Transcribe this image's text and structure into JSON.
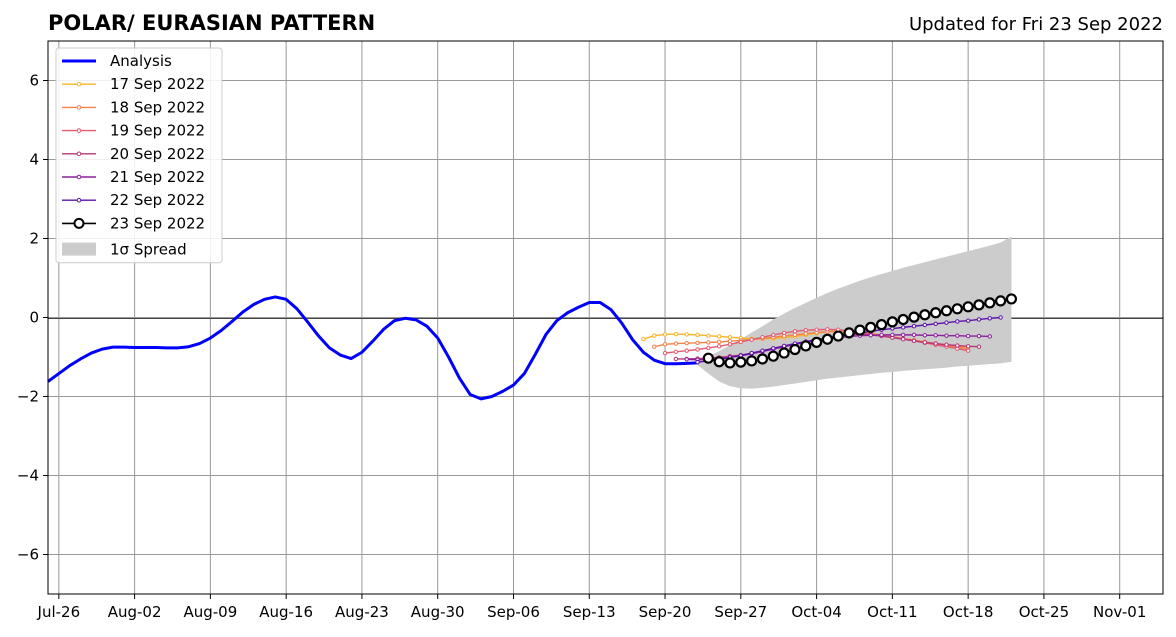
{
  "chart_data": {
    "type": "line",
    "title": "POLAR/ EURASIAN  PATTERN",
    "subtitle": "Updated for Fri 23 Sep 2022",
    "xlabel": "",
    "ylabel": "",
    "xlim": [
      "2022-07-25",
      "2022-11-05"
    ],
    "ylim": [
      -7,
      7
    ],
    "grid": true,
    "legend_position": "top-left",
    "x_ticks": [
      "2022-07-26",
      "2022-08-02",
      "2022-08-09",
      "2022-08-16",
      "2022-08-23",
      "2022-08-30",
      "2022-09-06",
      "2022-09-13",
      "2022-09-20",
      "2022-09-27",
      "2022-10-04",
      "2022-10-11",
      "2022-10-18",
      "2022-10-25",
      "2022-11-01"
    ],
    "x_tick_labels": [
      "Jul-26",
      "Aug-02",
      "Aug-09",
      "Aug-16",
      "Aug-23",
      "Aug-30",
      "Sep-06",
      "Sep-13",
      "Sep-20",
      "Sep-27",
      "Oct-04",
      "Oct-11",
      "Oct-18",
      "Oct-25",
      "Nov-01"
    ],
    "y_ticks": [
      -6,
      -4,
      -2,
      0,
      2,
      4,
      6
    ],
    "y_tick_labels": [
      "−6",
      "−4",
      "−2",
      "0",
      "2",
      "4",
      "6"
    ],
    "series": [
      {
        "name": "Analysis",
        "color": "#0000ff",
        "style": "thick-line",
        "x": [
          "2022-07-25",
          "2022-07-26",
          "2022-07-27",
          "2022-07-28",
          "2022-07-29",
          "2022-07-30",
          "2022-07-31",
          "2022-08-01",
          "2022-08-02",
          "2022-08-03",
          "2022-08-04",
          "2022-08-05",
          "2022-08-06",
          "2022-08-07",
          "2022-08-08",
          "2022-08-09",
          "2022-08-10",
          "2022-08-11",
          "2022-08-12",
          "2022-08-13",
          "2022-08-14",
          "2022-08-15",
          "2022-08-16",
          "2022-08-17",
          "2022-08-18",
          "2022-08-19",
          "2022-08-20",
          "2022-08-21",
          "2022-08-22",
          "2022-08-23",
          "2022-08-24",
          "2022-08-25",
          "2022-08-26",
          "2022-08-27",
          "2022-08-28",
          "2022-08-29",
          "2022-08-30",
          "2022-08-31",
          "2022-09-01",
          "2022-09-02",
          "2022-09-03",
          "2022-09-04",
          "2022-09-05",
          "2022-09-06",
          "2022-09-07",
          "2022-09-08",
          "2022-09-09",
          "2022-09-10",
          "2022-09-11",
          "2022-09-12",
          "2022-09-13",
          "2022-09-14",
          "2022-09-15",
          "2022-09-16",
          "2022-09-17",
          "2022-09-18",
          "2022-09-19",
          "2022-09-20",
          "2022-09-21",
          "2022-09-22",
          "2022-09-23"
        ],
        "y": [
          -1.62,
          -1.42,
          -1.22,
          -1.05,
          -0.9,
          -0.8,
          -0.75,
          -0.75,
          -0.76,
          -0.76,
          -0.76,
          -0.77,
          -0.77,
          -0.74,
          -0.66,
          -0.52,
          -0.33,
          -0.1,
          0.14,
          0.33,
          0.46,
          0.52,
          0.46,
          0.22,
          -0.12,
          -0.47,
          -0.77,
          -0.95,
          -1.04,
          -0.88,
          -0.6,
          -0.3,
          -0.08,
          -0.02,
          -0.06,
          -0.22,
          -0.52,
          -1.0,
          -1.53,
          -1.95,
          -2.06,
          -2.0,
          -1.87,
          -1.71,
          -1.42,
          -0.94,
          -0.43,
          -0.08,
          0.12,
          0.26,
          0.38,
          0.38,
          0.2,
          -0.14,
          -0.56,
          -0.88,
          -1.08,
          -1.17,
          -1.17,
          -1.16,
          -1.15
        ]
      },
      {
        "name": "17 Sep 2022",
        "color": "#f7b52a",
        "style": "thin-dot",
        "x": [
          "2022-09-18",
          "2022-09-19",
          "2022-09-20",
          "2022-09-21",
          "2022-09-22",
          "2022-09-23",
          "2022-09-24",
          "2022-09-25",
          "2022-09-26",
          "2022-09-27",
          "2022-09-28",
          "2022-09-29",
          "2022-09-30",
          "2022-10-01",
          "2022-10-02",
          "2022-10-03",
          "2022-10-04",
          "2022-10-05",
          "2022-10-06",
          "2022-10-07",
          "2022-10-08",
          "2022-10-09",
          "2022-10-10",
          "2022-10-11",
          "2022-10-12",
          "2022-10-13",
          "2022-10-14",
          "2022-10-15",
          "2022-10-16",
          "2022-10-17",
          "2022-10-18"
        ],
        "y": [
          -0.55,
          -0.46,
          -0.43,
          -0.42,
          -0.43,
          -0.44,
          -0.46,
          -0.48,
          -0.5,
          -0.52,
          -0.54,
          -0.54,
          -0.53,
          -0.51,
          -0.48,
          -0.44,
          -0.4,
          -0.36,
          -0.34,
          -0.34,
          -0.36,
          -0.4,
          -0.44,
          -0.49,
          -0.54,
          -0.58,
          -0.62,
          -0.66,
          -0.7,
          -0.73,
          -0.75
        ]
      },
      {
        "name": "18 Sep 2022",
        "color": "#f4824b",
        "style": "thin-dot",
        "x": [
          "2022-09-19",
          "2022-09-20",
          "2022-09-21",
          "2022-09-22",
          "2022-09-23",
          "2022-09-24",
          "2022-09-25",
          "2022-09-26",
          "2022-09-27",
          "2022-09-28",
          "2022-09-29",
          "2022-09-30",
          "2022-10-01",
          "2022-10-02",
          "2022-10-03",
          "2022-10-04",
          "2022-10-05",
          "2022-10-06",
          "2022-10-07",
          "2022-10-08",
          "2022-10-09",
          "2022-10-10",
          "2022-10-11",
          "2022-10-12",
          "2022-10-13",
          "2022-10-14",
          "2022-10-15",
          "2022-10-16",
          "2022-10-17",
          "2022-10-18"
        ],
        "y": [
          -0.74,
          -0.68,
          -0.66,
          -0.65,
          -0.64,
          -0.63,
          -0.62,
          -0.6,
          -0.58,
          -0.56,
          -0.53,
          -0.5,
          -0.47,
          -0.44,
          -0.41,
          -0.38,
          -0.36,
          -0.35,
          -0.36,
          -0.38,
          -0.41,
          -0.45,
          -0.49,
          -0.53,
          -0.57,
          -0.62,
          -0.66,
          -0.7,
          -0.75,
          -0.8
        ]
      },
      {
        "name": "19 Sep 2022",
        "color": "#e35b6f",
        "style": "thin-dot",
        "x": [
          "2022-09-20",
          "2022-09-21",
          "2022-09-22",
          "2022-09-23",
          "2022-09-24",
          "2022-09-25",
          "2022-09-26",
          "2022-09-27",
          "2022-09-28",
          "2022-09-29",
          "2022-09-30",
          "2022-10-01",
          "2022-10-02",
          "2022-10-03",
          "2022-10-04",
          "2022-10-05",
          "2022-10-06",
          "2022-10-07",
          "2022-10-08",
          "2022-10-09",
          "2022-10-10",
          "2022-10-11",
          "2022-10-12",
          "2022-10-13",
          "2022-10-14",
          "2022-10-15",
          "2022-10-16",
          "2022-10-17",
          "2022-10-18"
        ],
        "y": [
          -0.9,
          -0.87,
          -0.84,
          -0.81,
          -0.77,
          -0.73,
          -0.68,
          -0.62,
          -0.56,
          -0.5,
          -0.44,
          -0.39,
          -0.35,
          -0.32,
          -0.31,
          -0.3,
          -0.31,
          -0.34,
          -0.38,
          -0.42,
          -0.46,
          -0.5,
          -0.54,
          -0.59,
          -0.64,
          -0.69,
          -0.74,
          -0.79,
          -0.84
        ]
      },
      {
        "name": "20 Sep 2022",
        "color": "#b63679",
        "style": "thin-dot",
        "x": [
          "2022-09-21",
          "2022-09-22",
          "2022-09-23",
          "2022-09-24",
          "2022-09-25",
          "2022-09-26",
          "2022-09-27",
          "2022-09-28",
          "2022-09-29",
          "2022-09-30",
          "2022-10-01",
          "2022-10-02",
          "2022-10-03",
          "2022-10-04",
          "2022-10-05",
          "2022-10-06",
          "2022-10-07",
          "2022-10-08",
          "2022-10-09",
          "2022-10-10",
          "2022-10-11",
          "2022-10-12",
          "2022-10-13",
          "2022-10-14",
          "2022-10-15",
          "2022-10-16",
          "2022-10-17",
          "2022-10-18",
          "2022-10-19"
        ],
        "y": [
          -1.05,
          -1.05,
          -1.04,
          -1.03,
          -1.01,
          -0.98,
          -0.95,
          -0.91,
          -0.86,
          -0.8,
          -0.74,
          -0.68,
          -0.62,
          -0.56,
          -0.51,
          -0.47,
          -0.44,
          -0.43,
          -0.44,
          -0.47,
          -0.51,
          -0.55,
          -0.59,
          -0.63,
          -0.66,
          -0.69,
          -0.71,
          -0.73,
          -0.74
        ]
      },
      {
        "name": "21 Sep 2022",
        "color": "#8c1fa0",
        "style": "thin-dot",
        "x": [
          "2022-09-22",
          "2022-09-23",
          "2022-09-24",
          "2022-09-25",
          "2022-09-26",
          "2022-09-27",
          "2022-09-28",
          "2022-09-29",
          "2022-09-30",
          "2022-10-01",
          "2022-10-02",
          "2022-10-03",
          "2022-10-04",
          "2022-10-05",
          "2022-10-06",
          "2022-10-07",
          "2022-10-08",
          "2022-10-09",
          "2022-10-10",
          "2022-10-11",
          "2022-10-12",
          "2022-10-13",
          "2022-10-14",
          "2022-10-15",
          "2022-10-16",
          "2022-10-17",
          "2022-10-18",
          "2022-10-19",
          "2022-10-20"
        ],
        "y": [
          -1.06,
          -1.07,
          -1.06,
          -1.04,
          -1.01,
          -0.97,
          -0.92,
          -0.86,
          -0.8,
          -0.74,
          -0.68,
          -0.63,
          -0.58,
          -0.54,
          -0.51,
          -0.48,
          -0.46,
          -0.45,
          -0.44,
          -0.44,
          -0.44,
          -0.44,
          -0.45,
          -0.45,
          -0.46,
          -0.46,
          -0.47,
          -0.47,
          -0.48
        ]
      },
      {
        "name": "22 Sep 2022",
        "color": "#5b11a8",
        "style": "thin-dot",
        "x": [
          "2022-09-23",
          "2022-09-24",
          "2022-09-25",
          "2022-09-26",
          "2022-09-27",
          "2022-09-28",
          "2022-09-29",
          "2022-09-30",
          "2022-10-01",
          "2022-10-02",
          "2022-10-03",
          "2022-10-04",
          "2022-10-05",
          "2022-10-06",
          "2022-10-07",
          "2022-10-08",
          "2022-10-09",
          "2022-10-10",
          "2022-10-11",
          "2022-10-12",
          "2022-10-13",
          "2022-10-14",
          "2022-10-15",
          "2022-10-16",
          "2022-10-17",
          "2022-10-18",
          "2022-10-19",
          "2022-10-20",
          "2022-10-21"
        ],
        "y": [
          -1.13,
          -1.1,
          -1.06,
          -1.01,
          -0.96,
          -0.9,
          -0.84,
          -0.78,
          -0.72,
          -0.66,
          -0.61,
          -0.56,
          -0.51,
          -0.47,
          -0.43,
          -0.39,
          -0.35,
          -0.31,
          -0.28,
          -0.25,
          -0.22,
          -0.19,
          -0.16,
          -0.13,
          -0.1,
          -0.08,
          -0.05,
          -0.02,
          0.0
        ]
      },
      {
        "name": "23 Sep 2022",
        "color": "#000000",
        "style": "open-circle",
        "x": [
          "2022-09-24",
          "2022-09-25",
          "2022-09-26",
          "2022-09-27",
          "2022-09-28",
          "2022-09-29",
          "2022-09-30",
          "2022-10-01",
          "2022-10-02",
          "2022-10-03",
          "2022-10-04",
          "2022-10-05",
          "2022-10-06",
          "2022-10-07",
          "2022-10-08",
          "2022-10-09",
          "2022-10-10",
          "2022-10-11",
          "2022-10-12",
          "2022-10-13",
          "2022-10-14",
          "2022-10-15",
          "2022-10-16",
          "2022-10-17",
          "2022-10-18",
          "2022-10-19",
          "2022-10-20",
          "2022-10-21",
          "2022-10-22"
        ],
        "y": [
          -1.03,
          -1.12,
          -1.15,
          -1.13,
          -1.1,
          -1.05,
          -0.98,
          -0.9,
          -0.81,
          -0.72,
          -0.63,
          -0.55,
          -0.47,
          -0.39,
          -0.32,
          -0.25,
          -0.18,
          -0.11,
          -0.05,
          0.01,
          0.07,
          0.12,
          0.17,
          0.22,
          0.27,
          0.32,
          0.37,
          0.42,
          0.47
        ]
      }
    ],
    "spread": {
      "name": "1σ Spread",
      "color": "#cccccc",
      "x": [
        "2022-09-23",
        "2022-09-24",
        "2022-09-25",
        "2022-09-26",
        "2022-09-27",
        "2022-09-28",
        "2022-09-29",
        "2022-09-30",
        "2022-10-01",
        "2022-10-02",
        "2022-10-03",
        "2022-10-04",
        "2022-10-05",
        "2022-10-06",
        "2022-10-07",
        "2022-10-08",
        "2022-10-09",
        "2022-10-10",
        "2022-10-11",
        "2022-10-12",
        "2022-10-13",
        "2022-10-14",
        "2022-10-15",
        "2022-10-16",
        "2022-10-17",
        "2022-10-18",
        "2022-10-19",
        "2022-10-20",
        "2022-10-21",
        "2022-10-22"
      ],
      "upper": [
        -1.05,
        -0.98,
        -0.85,
        -0.7,
        -0.55,
        -0.38,
        -0.22,
        -0.05,
        0.1,
        0.24,
        0.37,
        0.5,
        0.62,
        0.73,
        0.83,
        0.93,
        1.02,
        1.1,
        1.18,
        1.26,
        1.33,
        1.4,
        1.47,
        1.54,
        1.61,
        1.68,
        1.75,
        1.82,
        1.9,
        2.05
      ],
      "lower": [
        -1.2,
        -1.42,
        -1.62,
        -1.74,
        -1.79,
        -1.8,
        -1.78,
        -1.75,
        -1.71,
        -1.67,
        -1.63,
        -1.59,
        -1.55,
        -1.52,
        -1.49,
        -1.46,
        -1.43,
        -1.4,
        -1.38,
        -1.35,
        -1.33,
        -1.31,
        -1.29,
        -1.27,
        -1.24,
        -1.22,
        -1.2,
        -1.18,
        -1.16,
        -1.12
      ]
    }
  }
}
